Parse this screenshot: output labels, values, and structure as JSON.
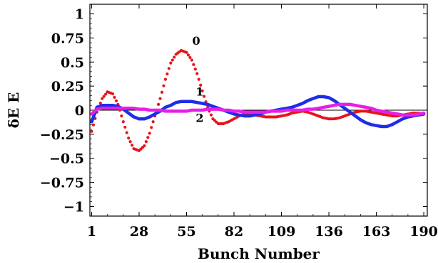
{
  "chart_data": {
    "type": "line",
    "xlabel": "Bunch Number",
    "ylabel": "δE  E",
    "xlim": [
      0,
      192
    ],
    "ylim": [
      -1.1,
      1.1
    ],
    "x_ticks": [
      1,
      28,
      55,
      82,
      109,
      136,
      163,
      190
    ],
    "y_ticks": [
      1,
      0.75,
      0.5,
      0.25,
      0,
      -0.25,
      -0.5,
      -0.75,
      -1
    ],
    "y_tick_labels": [
      "1",
      "0.75",
      "0.5",
      "0.25",
      "0",
      "−0.25",
      "−0.5",
      "−0.75",
      "−1"
    ],
    "zero_line": true,
    "series": [
      {
        "name": "0",
        "color": "#e8141a",
        "style": "dotted",
        "x": [
          1,
          4,
          7,
          10,
          13,
          16,
          19,
          22,
          25,
          28,
          31,
          34,
          37,
          40,
          43,
          46,
          49,
          52,
          55,
          58,
          61,
          64,
          67,
          70,
          73,
          76,
          79,
          82,
          85,
          88,
          91,
          94,
          97,
          100,
          103,
          106,
          109,
          112,
          115,
          118,
          121,
          124,
          127,
          130,
          133,
          136,
          139,
          142,
          145,
          148,
          151,
          154,
          157,
          160,
          163,
          166,
          169,
          172,
          175,
          178,
          181,
          184,
          187,
          190
        ],
        "y": [
          -0.22,
          -0.02,
          0.12,
          0.19,
          0.17,
          0.06,
          -0.12,
          -0.29,
          -0.4,
          -0.42,
          -0.37,
          -0.24,
          -0.06,
          0.12,
          0.32,
          0.49,
          0.58,
          0.62,
          0.6,
          0.52,
          0.38,
          0.2,
          0.03,
          -0.09,
          -0.14,
          -0.14,
          -0.12,
          -0.09,
          -0.06,
          -0.04,
          -0.04,
          -0.05,
          -0.06,
          -0.07,
          -0.07,
          -0.07,
          -0.06,
          -0.05,
          -0.03,
          -0.02,
          -0.01,
          -0.02,
          -0.04,
          -0.06,
          -0.08,
          -0.09,
          -0.09,
          -0.08,
          -0.06,
          -0.04,
          -0.02,
          -0.01,
          -0.01,
          -0.02,
          -0.03,
          -0.04,
          -0.05,
          -0.06,
          -0.06,
          -0.05,
          -0.04,
          -0.03,
          -0.03,
          -0.04
        ]
      },
      {
        "name": "1",
        "color": "#1e2ee6",
        "style": "solid",
        "x": [
          1,
          4,
          7,
          10,
          13,
          16,
          19,
          22,
          25,
          28,
          31,
          34,
          37,
          40,
          43,
          46,
          49,
          52,
          55,
          58,
          61,
          64,
          67,
          70,
          73,
          76,
          79,
          82,
          85,
          88,
          91,
          94,
          97,
          100,
          103,
          106,
          109,
          112,
          115,
          118,
          121,
          124,
          127,
          130,
          133,
          136,
          139,
          142,
          145,
          148,
          151,
          154,
          157,
          160,
          163,
          166,
          169,
          172,
          175,
          178,
          181,
          184,
          187,
          190
        ],
        "y": [
          -0.12,
          0.03,
          0.05,
          0.05,
          0.05,
          0.04,
          0.01,
          -0.03,
          -0.07,
          -0.09,
          -0.09,
          -0.07,
          -0.04,
          -0.01,
          0.03,
          0.05,
          0.08,
          0.09,
          0.09,
          0.09,
          0.08,
          0.07,
          0.06,
          0.04,
          0.02,
          0.0,
          -0.02,
          -0.04,
          -0.05,
          -0.06,
          -0.06,
          -0.05,
          -0.04,
          -0.02,
          -0.01,
          0.0,
          0.01,
          0.02,
          0.03,
          0.05,
          0.07,
          0.1,
          0.12,
          0.14,
          0.14,
          0.13,
          0.1,
          0.06,
          0.02,
          -0.02,
          -0.06,
          -0.1,
          -0.13,
          -0.15,
          -0.16,
          -0.17,
          -0.17,
          -0.15,
          -0.12,
          -0.09,
          -0.07,
          -0.06,
          -0.05,
          -0.04
        ]
      },
      {
        "name": "2",
        "color": "#e81ee6",
        "style": "solid",
        "x": [
          1,
          4,
          7,
          10,
          13,
          16,
          19,
          22,
          25,
          28,
          31,
          34,
          37,
          40,
          43,
          46,
          49,
          52,
          55,
          58,
          61,
          64,
          67,
          70,
          73,
          76,
          79,
          82,
          85,
          88,
          91,
          94,
          97,
          100,
          103,
          106,
          109,
          112,
          115,
          118,
          121,
          124,
          127,
          130,
          133,
          136,
          139,
          142,
          145,
          148,
          151,
          154,
          157,
          160,
          163,
          166,
          169,
          172,
          175,
          178,
          181,
          184,
          187,
          190
        ],
        "y": [
          -0.04,
          0.01,
          0.02,
          0.02,
          0.02,
          0.02,
          0.02,
          0.02,
          0.02,
          0.01,
          0.01,
          0.0,
          0.0,
          0.0,
          -0.01,
          -0.01,
          -0.01,
          -0.01,
          -0.01,
          0.0,
          0.0,
          0.0,
          0.01,
          0.01,
          0.01,
          0.0,
          0.0,
          -0.01,
          -0.01,
          -0.02,
          -0.02,
          -0.02,
          -0.02,
          -0.02,
          -0.01,
          -0.01,
          -0.01,
          0.0,
          0.0,
          0.0,
          0.0,
          0.01,
          0.01,
          0.02,
          0.03,
          0.04,
          0.05,
          0.06,
          0.06,
          0.06,
          0.05,
          0.04,
          0.03,
          0.02,
          0.0,
          -0.01,
          -0.02,
          -0.03,
          -0.04,
          -0.05,
          -0.05,
          -0.05,
          -0.04,
          -0.03
        ]
      }
    ],
    "annotations": [
      {
        "text": "0",
        "x": 55,
        "y": 0.68
      },
      {
        "text": "1",
        "x": 57,
        "y": 0.15
      },
      {
        "text": "2",
        "x": 57,
        "y": -0.12
      }
    ]
  }
}
